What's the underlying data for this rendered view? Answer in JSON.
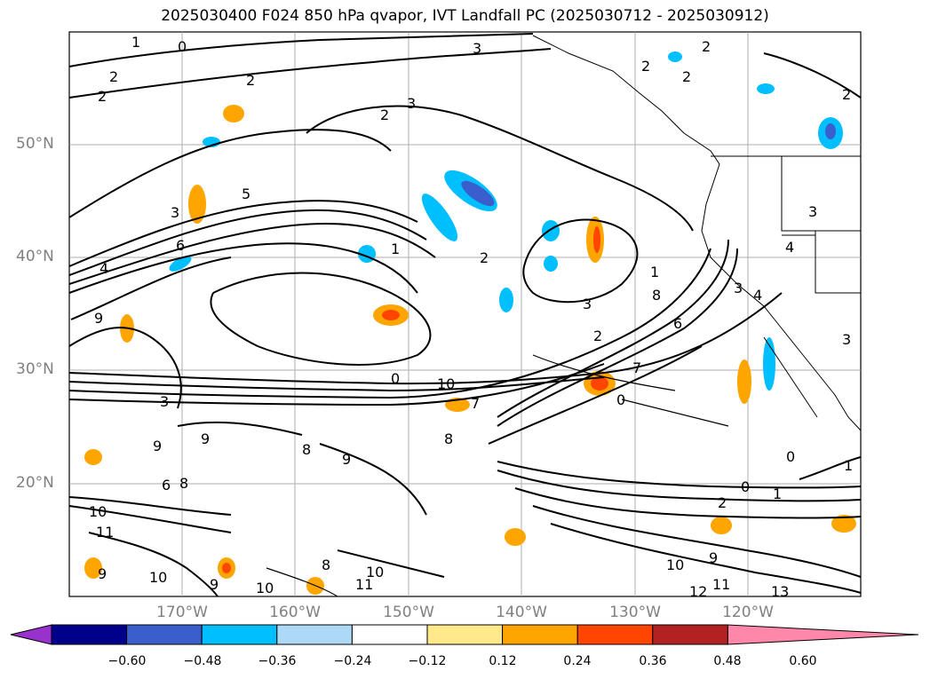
{
  "title": "2025030400 F024 850 hPa qvapor, IVT Landfall PC (2025030712 - 2025030912)",
  "lat_labels": [
    "50°N",
    "40°N",
    "30°N",
    "20°N"
  ],
  "lon_labels": [
    "170°W",
    "160°W",
    "150°W",
    "140°W",
    "130°W",
    "120°W"
  ],
  "colorbar": {
    "ticks": [
      "−0.60",
      "−0.48",
      "−0.36",
      "−0.24",
      "−0.12",
      "0.12",
      "0.24",
      "0.36",
      "0.48",
      "0.60"
    ],
    "colors": [
      "#9932CC",
      "#00008B",
      "#3A5FCD",
      "#00BFFF",
      "#ADD8F6",
      "#FFFFFF",
      "#FFE98A",
      "#FFA500",
      "#FF4500",
      "#B22222",
      "#FF88AA"
    ]
  },
  "contour_labels": [
    "1",
    "0",
    "2",
    "2",
    "3",
    "2",
    "2",
    "2",
    "2",
    "3",
    "2",
    "2",
    "3",
    "5",
    "6",
    "4",
    "1",
    "2",
    "3",
    "4",
    "6",
    "2",
    "7",
    "3",
    "0",
    "10",
    "7",
    "8",
    "9",
    "9",
    "8",
    "6",
    "8",
    "9",
    "10",
    "11",
    "9",
    "10",
    "9",
    "10",
    "11",
    "10",
    "8",
    "1",
    "0",
    "0",
    "1",
    "2",
    "9",
    "11",
    "12",
    "13",
    "10",
    "3",
    "1",
    "4",
    "3",
    "3",
    "9",
    "8",
    "0"
  ]
}
